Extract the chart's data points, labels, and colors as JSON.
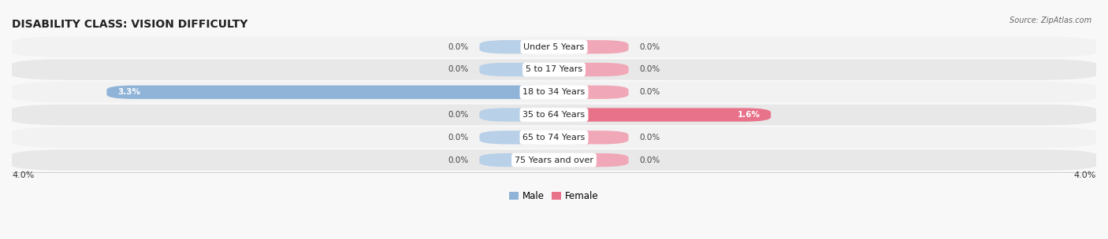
{
  "title": "DISABILITY CLASS: VISION DIFFICULTY",
  "source": "Source: ZipAtlas.com",
  "categories": [
    "Under 5 Years",
    "5 to 17 Years",
    "18 to 34 Years",
    "35 to 64 Years",
    "65 to 74 Years",
    "75 Years and over"
  ],
  "male_values": [
    0.0,
    0.0,
    3.3,
    0.0,
    0.0,
    0.0
  ],
  "female_values": [
    0.0,
    0.0,
    0.0,
    1.6,
    0.0,
    0.0
  ],
  "xlim": 4.0,
  "male_color": "#90b4d8",
  "male_color_light": "#b8d0e8",
  "female_color": "#e8728a",
  "female_color_light": "#f0a8b8",
  "male_label": "Male",
  "female_label": "Female",
  "row_colors": [
    "#f2f2f2",
    "#e8e8e8",
    "#f2f2f2",
    "#e8e8e8",
    "#f2f2f2",
    "#e8e8e8"
  ],
  "title_fontsize": 10,
  "label_fontsize": 8,
  "tick_fontsize": 8,
  "value_fontsize": 7.5,
  "bg_color": "#f8f8f8"
}
